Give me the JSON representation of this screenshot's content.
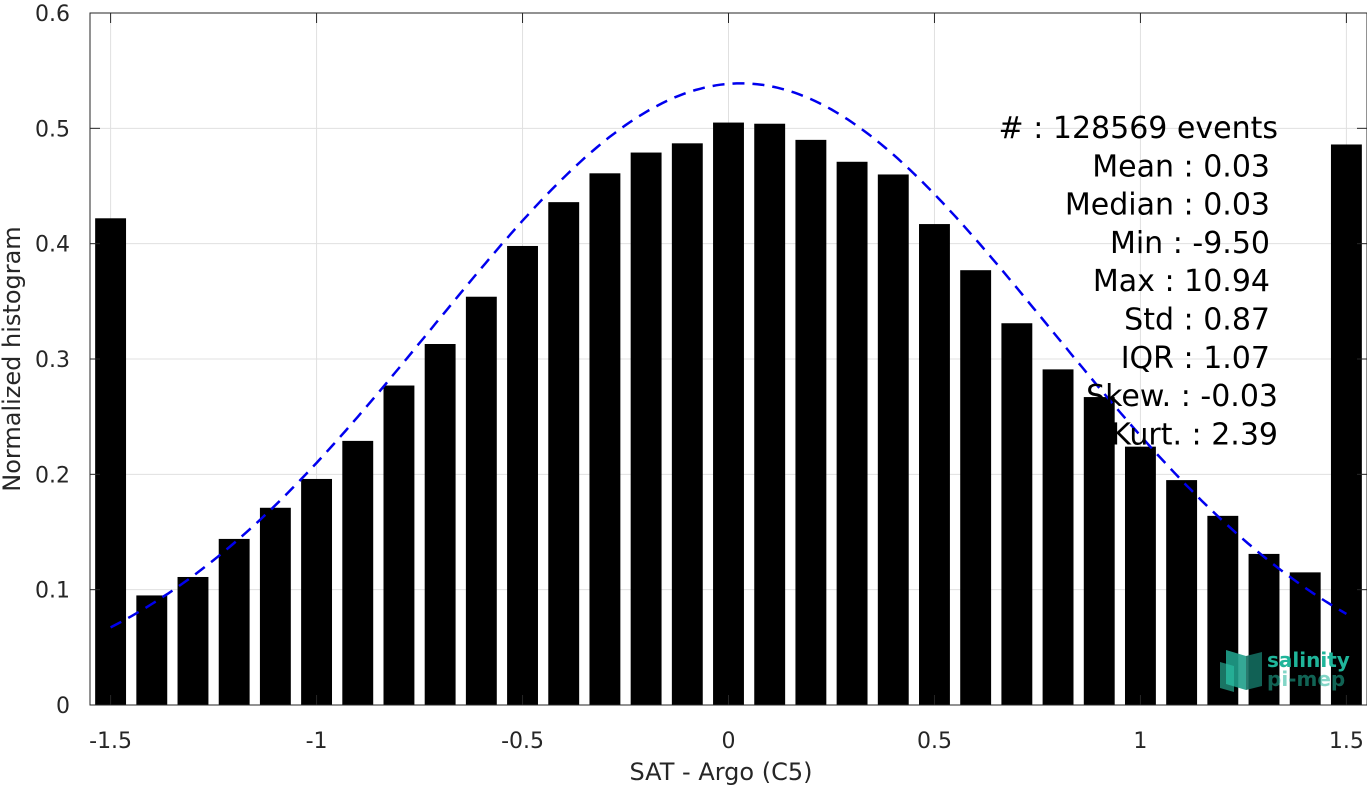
{
  "chart_data": {
    "type": "bar",
    "xlabel": "SAT - Argo (C5)",
    "ylabel": "Normalized histogram",
    "xlim": [
      -1.55,
      1.55
    ],
    "ylim": [
      0,
      0.6
    ],
    "x_ticks": [
      -1.5,
      -1,
      -0.5,
      0,
      0.5,
      1,
      1.5
    ],
    "x_tick_labels": [
      "-1.5",
      "-1",
      "-0.5",
      "0",
      "0.5",
      "1",
      "1.5"
    ],
    "y_ticks": [
      0,
      0.1,
      0.2,
      0.3,
      0.4,
      0.5,
      0.6
    ],
    "y_tick_labels": [
      "0",
      "0.1",
      "0.2",
      "0.3",
      "0.4",
      "0.5",
      "0.6"
    ],
    "grid": true,
    "bar_color": "#000000",
    "bar_width": 0.075,
    "x": [
      -1.5,
      -1.4,
      -1.3,
      -1.2,
      -1.1,
      -1.0,
      -0.9,
      -0.8,
      -0.7,
      -0.6,
      -0.5,
      -0.4,
      -0.3,
      -0.2,
      -0.1,
      0.0,
      0.1,
      0.2,
      0.3,
      0.4,
      0.5,
      0.6,
      0.7,
      0.8,
      0.9,
      1.0,
      1.1,
      1.2,
      1.3,
      1.4,
      1.5
    ],
    "values": [
      0.422,
      0.095,
      0.111,
      0.144,
      0.171,
      0.196,
      0.229,
      0.277,
      0.313,
      0.354,
      0.398,
      0.436,
      0.461,
      0.479,
      0.487,
      0.505,
      0.504,
      0.49,
      0.471,
      0.46,
      0.417,
      0.377,
      0.331,
      0.291,
      0.267,
      0.224,
      0.195,
      0.164,
      0.131,
      0.115,
      0.486
    ],
    "fit": {
      "type": "gaussian",
      "color": "#0000ee",
      "style": "dashed",
      "mean": 0.03,
      "peak": 0.539,
      "sigma": 0.75,
      "x_range": [
        -1.5,
        1.5
      ]
    },
    "stats_lines": [
      "#  : 128569 events",
      "Mean : 0.03",
      "Median : 0.03",
      "Min : -9.50",
      "Max : 10.94",
      "Std : 0.87",
      "IQR : 1.07",
      "Skew. : -0.03",
      "Kurt. : 2.39"
    ]
  },
  "logo": {
    "line1": "salinity",
    "line2": "pi-mep",
    "color": "#1fb59a"
  }
}
